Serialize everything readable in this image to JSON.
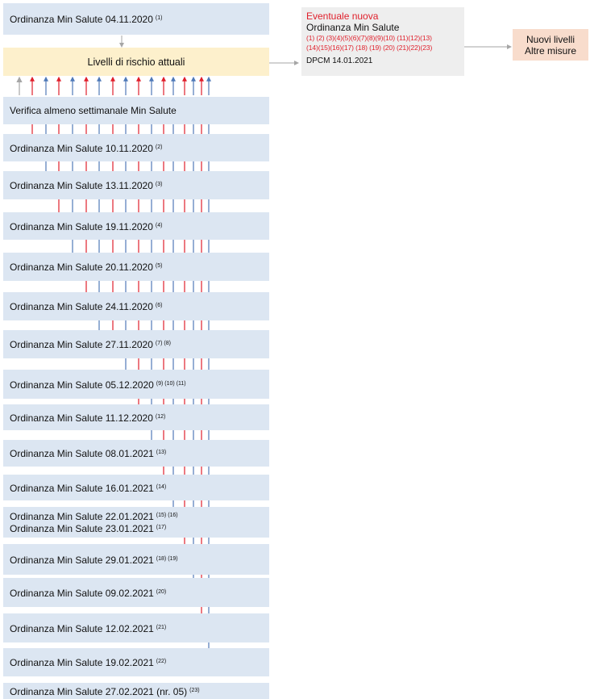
{
  "colors": {
    "red": "#e01f2b",
    "blue": "#4f79b8",
    "gray": "#a6a6a6"
  },
  "top_order": {
    "label": "Ordinanza Min Salute 04.11.2020",
    "ref": "(1)"
  },
  "levels_box": {
    "label": "Livelli di rischio attuali"
  },
  "weekly_check": {
    "label": "Verifica almeno settimanale Min Salute"
  },
  "new_order_box": {
    "title": "Eventuale nuova",
    "subtitle": "Ordinanza Min Salute",
    "refs_line1": "(1) (2) (3)(4)(5)(6)(7)(8)(9)(10)  (11)(12)(13)",
    "refs_line2": "(14)(15)(16)(17) (18) (19) (20) (21)(22)(23)",
    "dpcm": "DPCM 14.01.2021"
  },
  "result_box": {
    "line1": "Nuovi livelli",
    "line2": "Altre misure"
  },
  "orders": [
    {
      "lines": [
        {
          "label": "Ordinanza Min Salute 10.11.2020",
          "ref": "(2)"
        }
      ]
    },
    {
      "lines": [
        {
          "label": "Ordinanza Min Salute 13.11.2020",
          "ref": "(3)"
        }
      ]
    },
    {
      "lines": [
        {
          "label": "Ordinanza Min Salute 19.11.2020",
          "ref": "(4)"
        }
      ]
    },
    {
      "lines": [
        {
          "label": "Ordinanza Min Salute 20.11.2020",
          "ref": "(5)"
        }
      ]
    },
    {
      "lines": [
        {
          "label": "Ordinanza Min Salute 24.11.2020",
          "ref": "(6)"
        }
      ]
    },
    {
      "lines": [
        {
          "label": "Ordinanza Min Salute 27.11.2020",
          "ref": "(7) (8)"
        }
      ]
    },
    {
      "lines": [
        {
          "label": "Ordinanza Min Salute 05.12.2020",
          "ref": "(9) (10) (11)"
        }
      ]
    },
    {
      "lines": [
        {
          "label": "Ordinanza Min Salute 11.12.2020",
          "ref": "(12)"
        }
      ]
    },
    {
      "lines": [
        {
          "label": "Ordinanza Min Salute 08.01.2021",
          "ref": "(13)"
        }
      ]
    },
    {
      "lines": [
        {
          "label": "Ordinanza Min Salute 16.01.2021",
          "ref": "(14)"
        }
      ]
    },
    {
      "lines": [
        {
          "label": "Ordinanza Min Salute 22.01.2021",
          "ref": "(15) (16)"
        },
        {
          "label": "Ordinanza Min Salute 23.01.2021",
          "ref": "(17)"
        }
      ]
    },
    {
      "lines": [
        {
          "label": "Ordinanza Min Salute 29.01.2021",
          "ref": "(18) (19)"
        }
      ]
    },
    {
      "lines": [
        {
          "label": "Ordinanza Min Salute 09.02.2021",
          "ref": "(20)"
        }
      ]
    },
    {
      "lines": [
        {
          "label": "Ordinanza Min Salute 12.02.2021",
          "ref": "(21)"
        }
      ]
    },
    {
      "lines": [
        {
          "label": "Ordinanza Min Salute 19.02.2021",
          "ref": "(22)"
        }
      ]
    },
    {
      "lines": [
        {
          "label": "Ordinanza Min Salute 27.02.2021 (nr. 05)",
          "ref": "(23)"
        }
      ]
    }
  ]
}
